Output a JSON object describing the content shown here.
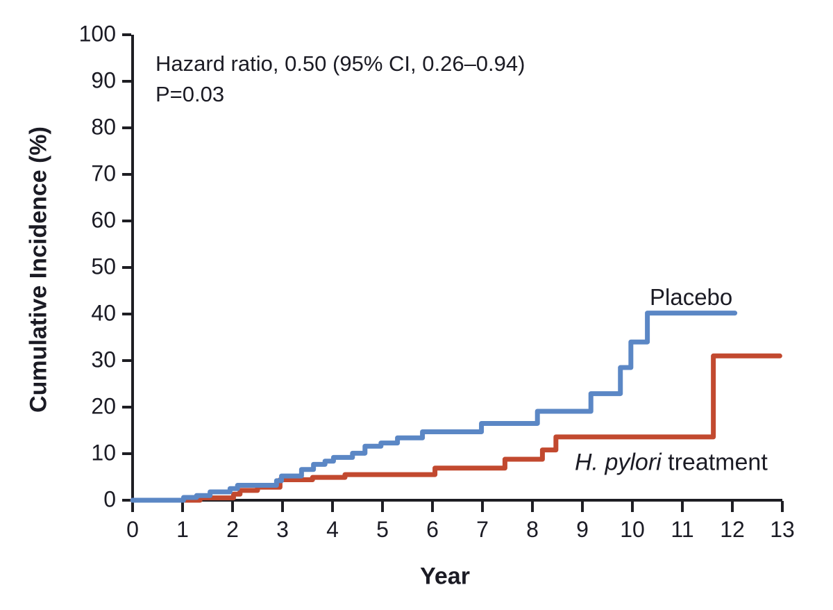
{
  "colors": {
    "axis": "#1e1e23",
    "text": "#1b1b24",
    "placebo_blue": "#5b87c5",
    "treatment_red": "#c2492f"
  },
  "chart_data": {
    "type": "line",
    "subtype": "kaplan-meier-cumulative-incidence-step",
    "title": "",
    "xlabel": "Year",
    "ylabel": "Cumulative Incidence (%)",
    "xlim": [
      0,
      13
    ],
    "ylim": [
      0,
      100
    ],
    "grid": false,
    "legend_position": "direct-curve-labels",
    "x_ticks": [
      0,
      1,
      2,
      3,
      4,
      5,
      6,
      7,
      8,
      9,
      10,
      11,
      12,
      13
    ],
    "y_ticks": [
      0,
      10,
      20,
      30,
      40,
      50,
      60,
      70,
      80,
      90,
      100
    ],
    "annotations": [
      "Hazard ratio, 0.50 (95% CI, 0.26–0.94)",
      "P=0.03"
    ],
    "series": [
      {
        "name": "Placebo",
        "color": "#5b87c5",
        "end_x": 12.05,
        "points": [
          [
            0,
            0
          ],
          [
            1.02,
            0.6
          ],
          [
            1.28,
            1.0
          ],
          [
            1.55,
            1.8
          ],
          [
            1.95,
            2.5
          ],
          [
            2.1,
            3.2
          ],
          [
            2.88,
            4.2
          ],
          [
            2.98,
            5.2
          ],
          [
            3.38,
            6.6
          ],
          [
            3.62,
            7.7
          ],
          [
            3.85,
            8.4
          ],
          [
            4.02,
            9.2
          ],
          [
            4.4,
            10.1
          ],
          [
            4.65,
            11.6
          ],
          [
            4.97,
            12.3
          ],
          [
            5.3,
            13.4
          ],
          [
            5.8,
            14.7
          ],
          [
            6.98,
            16.5
          ],
          [
            8.1,
            19.1
          ],
          [
            9.17,
            22.9
          ],
          [
            9.76,
            28.5
          ],
          [
            9.97,
            34.0
          ],
          [
            10.3,
            40.2
          ]
        ]
      },
      {
        "name": "H. pylori treatment",
        "label_parts": {
          "italic": "H. pylori",
          "regular": " treatment"
        },
        "color": "#c2492f",
        "end_x": 12.95,
        "points": [
          [
            0,
            0
          ],
          [
            1.35,
            0.5
          ],
          [
            2.02,
            1.3
          ],
          [
            2.15,
            2.1
          ],
          [
            2.5,
            2.8
          ],
          [
            2.95,
            4.4
          ],
          [
            3.6,
            4.9
          ],
          [
            4.25,
            5.5
          ],
          [
            6.05,
            6.9
          ],
          [
            7.45,
            8.8
          ],
          [
            8.2,
            10.8
          ],
          [
            8.47,
            13.6
          ],
          [
            11.62,
            31.0
          ]
        ]
      }
    ]
  }
}
